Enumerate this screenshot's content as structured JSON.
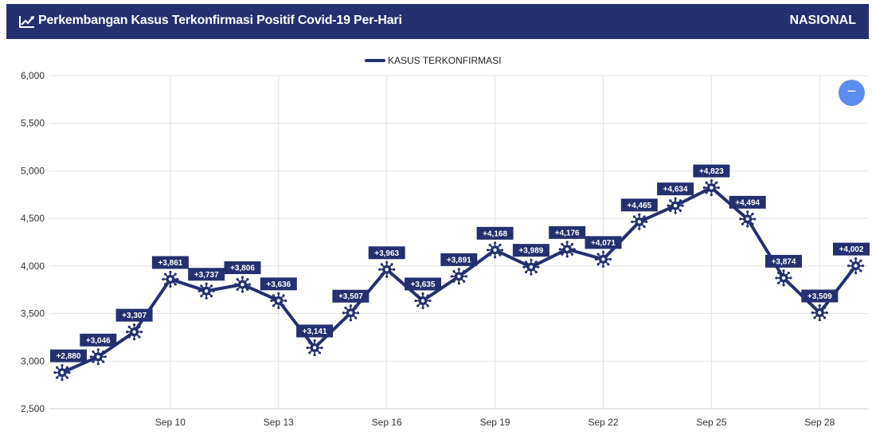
{
  "header": {
    "title": "Perkembangan Kasus Terkonfirmasi Positif Covid-19 Per-Hari",
    "region": "NASIONAL",
    "icon": "line-chart-icon"
  },
  "zoom": {
    "label": "−",
    "icon": "zoom-out-icon"
  },
  "colors": {
    "series": "#24306f",
    "header": "#24306f",
    "zoom": "#5b8def"
  },
  "chart_data": {
    "type": "line",
    "x": [
      "Sep 7",
      "Sep 8",
      "Sep 9",
      "Sep 10",
      "Sep 11",
      "Sep 12",
      "Sep 13",
      "Sep 14",
      "Sep 15",
      "Sep 16",
      "Sep 17",
      "Sep 18",
      "Sep 19",
      "Sep 20",
      "Sep 21",
      "Sep 22",
      "Sep 23",
      "Sep 24",
      "Sep 25",
      "Sep 26",
      "Sep 27",
      "Sep 28",
      "Sep 29"
    ],
    "x_ticks": [
      "Sep 10",
      "Sep 13",
      "Sep 16",
      "Sep 19",
      "Sep 22",
      "Sep 25",
      "Sep 28"
    ],
    "series": [
      {
        "name": "KASUS TERKONFIRMASI",
        "values": [
          2880,
          3046,
          3307,
          3861,
          3737,
          3806,
          3636,
          3141,
          3507,
          3963,
          3635,
          3891,
          4168,
          3989,
          4176,
          4071,
          4465,
          4634,
          4823,
          4494,
          3874,
          3509,
          4002
        ],
        "labels": [
          "+2,880",
          "+3,046",
          "+3,307",
          "+3,861",
          "+3,737",
          "+3,806",
          "+3,636",
          "+3,141",
          "+3,507",
          "+3,963",
          "+3,635",
          "+3,891",
          "+4,168",
          "+3,989",
          "+4,176",
          "+4,071",
          "+4,465",
          "+4,634",
          "+4,823",
          "+4,494",
          "+3,874",
          "+3,509",
          "+4,002"
        ]
      }
    ],
    "y_ticks": [
      "2,500",
      "3,000",
      "3,500",
      "4,000",
      "4,500",
      "5,000",
      "5,500",
      "6,000"
    ],
    "ylim": [
      2500,
      6000
    ],
    "grid": true,
    "legend": "top-center"
  }
}
